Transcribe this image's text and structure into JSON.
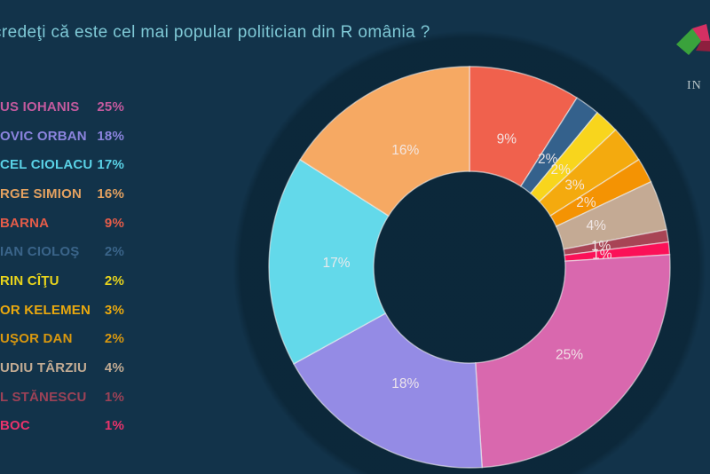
{
  "header": {
    "title": "credeţi că este cel mai popular politician din R omânia ?"
  },
  "logo": {
    "text": "IN",
    "cube_green": "#3aa23c",
    "cube_crimson": "#d43063",
    "cube_darkred": "#8e1f3e"
  },
  "legend": {
    "items": [
      {
        "name": "US IOHANIS",
        "value": "25%",
        "color": "#c35a9e"
      },
      {
        "name": "OVIC ORBAN",
        "value": "18%",
        "color": "#8b84de"
      },
      {
        "name": "CEL CIOLACU",
        "value": "17%",
        "color": "#5ad2e6"
      },
      {
        "name": "RGE SIMION",
        "value": "16%",
        "color": "#e3a160"
      },
      {
        "name": "BARNA",
        "value": "9%",
        "color": "#e55c49"
      },
      {
        "name": "IAN CIOLOŞ",
        "value": "2%",
        "color": "#3a6489"
      },
      {
        "name": "RIN CÎŢU",
        "value": "2%",
        "color": "#e8d41c"
      },
      {
        "name": "OR KELEMEN",
        "value": "3%",
        "color": "#eaa90e"
      },
      {
        "name": "UŞOR DAN",
        "value": "2%",
        "color": "#d9980f"
      },
      {
        "name": "UDIU TÂRZIU",
        "value": "4%",
        "color": "#c2ab93"
      },
      {
        "name": "L STĂNESCU",
        "value": "1%",
        "color": "#9c4257"
      },
      {
        "name": "BOC",
        "value": "1%",
        "color": "#e9336b"
      }
    ]
  },
  "chart_data": {
    "type": "pie",
    "subtype": "donut",
    "title": "credeţi că este cel mai popular politician din R omânia ?",
    "start_angle_deg_from_top_clockwise": 0,
    "legend_position": "left",
    "slices_clockwise_from_top": [
      {
        "label": "BARNA",
        "value": 9,
        "color": "#f0614d",
        "data_label": "9%"
      },
      {
        "label": "IAN CIOLOŞ",
        "value": 2,
        "color": "#34618c",
        "data_label": "2%"
      },
      {
        "label": "RIN CÎŢU",
        "value": 2,
        "color": "#f8d51d",
        "data_label": "2%"
      },
      {
        "label": "OR KELEMEN",
        "value": 3,
        "color": "#f4aa0e",
        "data_label": "3%"
      },
      {
        "label": "UŞOR DAN",
        "value": 2,
        "color": "#f49303",
        "data_label": "2%"
      },
      {
        "label": "UDIU TÂRZIU",
        "value": 4,
        "color": "#c4aa94",
        "data_label": "4%"
      },
      {
        "label": "L STĂNESCU",
        "value": 1,
        "color": "#a84455",
        "data_label": "1%"
      },
      {
        "label": "BOC",
        "value": 1,
        "color": "#fb1158",
        "data_label": "1%"
      },
      {
        "label": "US IOHANIS",
        "value": 25,
        "color": "#d968ae",
        "data_label": "25%"
      },
      {
        "label": "OVIC ORBAN",
        "value": 18,
        "color": "#948be5",
        "data_label": "18%"
      },
      {
        "label": "CEL CIOLACU",
        "value": 17,
        "color": "#63d9ea",
        "data_label": "17%"
      },
      {
        "label": "RGE SIMION",
        "value": 16,
        "color": "#f6a963",
        "data_label": "16%"
      }
    ]
  }
}
